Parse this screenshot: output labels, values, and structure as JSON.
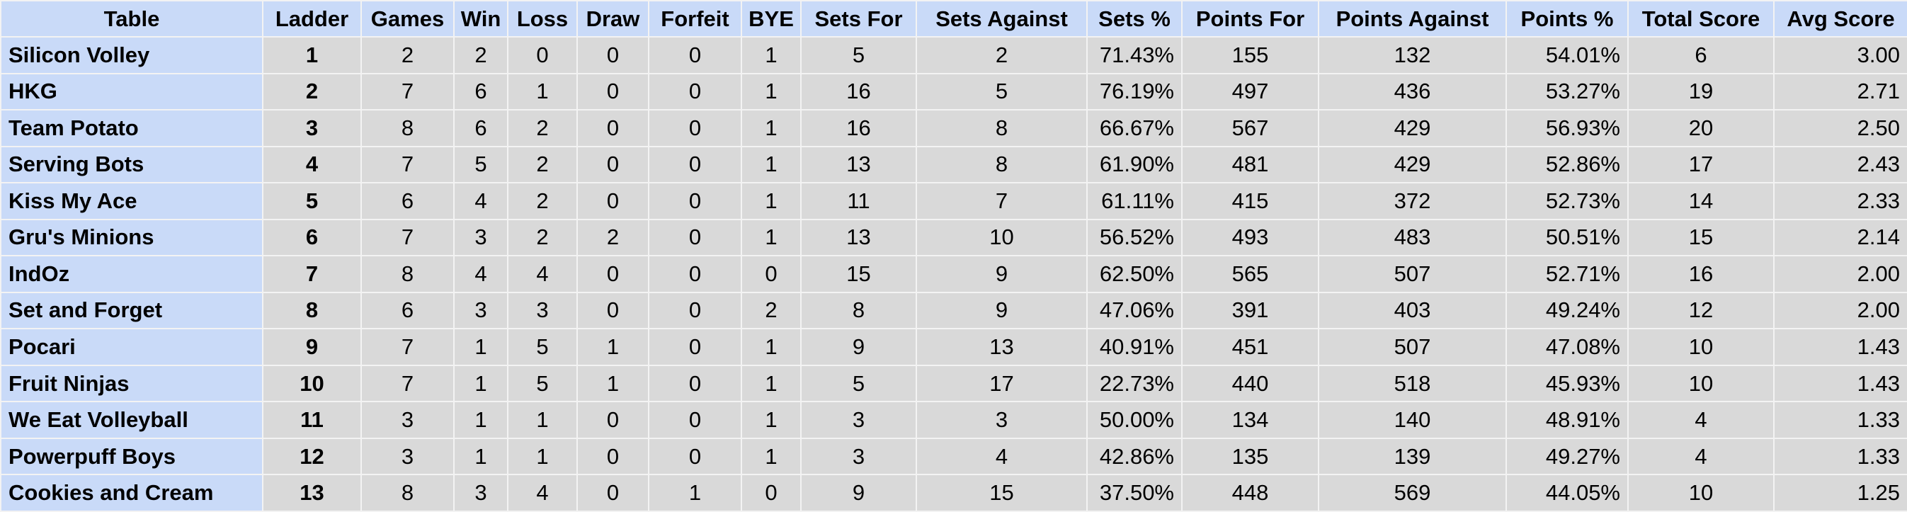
{
  "table": {
    "header": [
      "Table",
      "Ladder",
      "Games",
      "Win",
      "Loss",
      "Draw",
      "Forfeit",
      "BYE",
      "Sets For",
      "Sets Against",
      "Sets %",
      "Points For",
      "Points Against",
      "Points %",
      "Total Score",
      "Avg Score"
    ],
    "rows": [
      [
        "Silicon Volley",
        "1",
        "2",
        "2",
        "0",
        "0",
        "0",
        "1",
        "5",
        "2",
        "71.43%",
        "155",
        "132",
        "54.01%",
        "6",
        "3.00"
      ],
      [
        "HKG",
        "2",
        "7",
        "6",
        "1",
        "0",
        "0",
        "1",
        "16",
        "5",
        "76.19%",
        "497",
        "436",
        "53.27%",
        "19",
        "2.71"
      ],
      [
        "Team Potato",
        "3",
        "8",
        "6",
        "2",
        "0",
        "0",
        "1",
        "16",
        "8",
        "66.67%",
        "567",
        "429",
        "56.93%",
        "20",
        "2.50"
      ],
      [
        "Serving Bots",
        "4",
        "7",
        "5",
        "2",
        "0",
        "0",
        "1",
        "13",
        "8",
        "61.90%",
        "481",
        "429",
        "52.86%",
        "17",
        "2.43"
      ],
      [
        "Kiss My Ace",
        "5",
        "6",
        "4",
        "2",
        "0",
        "0",
        "1",
        "11",
        "7",
        "61.11%",
        "415",
        "372",
        "52.73%",
        "14",
        "2.33"
      ],
      [
        "Gru's Minions",
        "6",
        "7",
        "3",
        "2",
        "2",
        "0",
        "1",
        "13",
        "10",
        "56.52%",
        "493",
        "483",
        "50.51%",
        "15",
        "2.14"
      ],
      [
        "IndOz",
        "7",
        "8",
        "4",
        "4",
        "0",
        "0",
        "0",
        "15",
        "9",
        "62.50%",
        "565",
        "507",
        "52.71%",
        "16",
        "2.00"
      ],
      [
        "Set and Forget",
        "8",
        "6",
        "3",
        "3",
        "0",
        "0",
        "2",
        "8",
        "9",
        "47.06%",
        "391",
        "403",
        "49.24%",
        "12",
        "2.00"
      ],
      [
        "Pocari",
        "9",
        "7",
        "1",
        "5",
        "1",
        "0",
        "1",
        "9",
        "13",
        "40.91%",
        "451",
        "507",
        "47.08%",
        "10",
        "1.43"
      ],
      [
        "Fruit Ninjas",
        "10",
        "7",
        "1",
        "5",
        "1",
        "0",
        "1",
        "5",
        "17",
        "22.73%",
        "440",
        "518",
        "45.93%",
        "10",
        "1.43"
      ],
      [
        "We Eat Volleyball",
        "11",
        "3",
        "1",
        "1",
        "0",
        "0",
        "1",
        "3",
        "3",
        "50.00%",
        "134",
        "140",
        "48.91%",
        "4",
        "1.33"
      ],
      [
        "Powerpuff Boys",
        "12",
        "3",
        "1",
        "1",
        "0",
        "0",
        "1",
        "3",
        "4",
        "42.86%",
        "135",
        "139",
        "49.27%",
        "4",
        "1.33"
      ],
      [
        "Cookies and Cream",
        "13",
        "8",
        "3",
        "4",
        "0",
        "1",
        "0",
        "9",
        "15",
        "37.50%",
        "448",
        "569",
        "44.05%",
        "10",
        "1.25"
      ]
    ]
  }
}
